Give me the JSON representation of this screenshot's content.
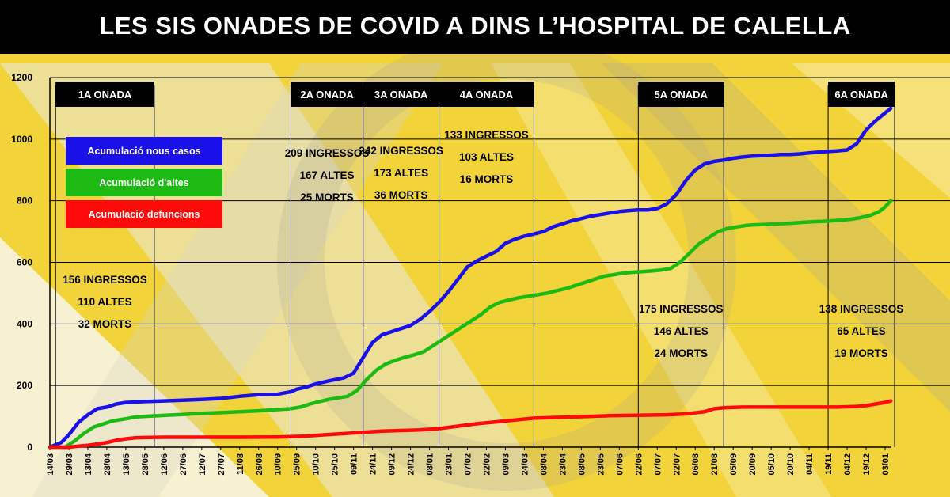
{
  "header": {
    "title": "LES SIS ONADES DE COVID A DINS L’HOSPITAL DE CALELLA"
  },
  "colors": {
    "cases": "#1a10e8",
    "discharges": "#1dba14",
    "deaths": "#ff0a0a",
    "background": "#f2d43a",
    "wave_header": "#000000"
  },
  "chart_data": {
    "type": "line",
    "title": "LES SIS ONADES DE COVID A DINS L’HOSPITAL DE CALELLA",
    "xlabel": "",
    "ylabel": "",
    "ylim": [
      0,
      1200
    ],
    "yticks": [
      0,
      200,
      400,
      600,
      800,
      1000,
      1200
    ],
    "grid": true,
    "legend_position": "top-left",
    "x_tick_labels": [
      "14/03",
      "29/03",
      "13/04",
      "28/04",
      "13/05",
      "28/05",
      "12/06",
      "27/06",
      "12/07",
      "27/07",
      "11/08",
      "26/08",
      "10/09",
      "25/09",
      "10/10",
      "25/10",
      "09/11",
      "24/11",
      "09/12",
      "24/12",
      "08/01",
      "23/01",
      "07/02",
      "22/02",
      "09/03",
      "24/03",
      "08/04",
      "23/04",
      "08/05",
      "23/05",
      "07/06",
      "22/06",
      "07/07",
      "22/07",
      "06/08",
      "21/08",
      "05/09",
      "20/09",
      "05/10",
      "20/10",
      "04/11",
      "19/11",
      "04/12",
      "19/12",
      "03/01"
    ],
    "series": [
      {
        "name": "Acumulació nous casos",
        "color": "#1a10e8",
        "points": [
          [
            0,
            0
          ],
          [
            0.6,
            15
          ],
          [
            1,
            40
          ],
          [
            1.5,
            80
          ],
          [
            2,
            105
          ],
          [
            2.5,
            125
          ],
          [
            3,
            130
          ],
          [
            3.5,
            140
          ],
          [
            4,
            145
          ],
          [
            5,
            148
          ],
          [
            6,
            150
          ],
          [
            7,
            152
          ],
          [
            8,
            155
          ],
          [
            9,
            158
          ],
          [
            10,
            165
          ],
          [
            11,
            170
          ],
          [
            12,
            172
          ],
          [
            12.7,
            180
          ],
          [
            13,
            188
          ],
          [
            13.5,
            195
          ],
          [
            14,
            205
          ],
          [
            14.7,
            215
          ],
          [
            15.5,
            225
          ],
          [
            16,
            240
          ],
          [
            16.5,
            290
          ],
          [
            17,
            340
          ],
          [
            17.5,
            365
          ],
          [
            18,
            375
          ],
          [
            18.5,
            385
          ],
          [
            19,
            395
          ],
          [
            19.5,
            415
          ],
          [
            20,
            440
          ],
          [
            20.5,
            470
          ],
          [
            21,
            505
          ],
          [
            21.5,
            545
          ],
          [
            22,
            585
          ],
          [
            22.5,
            605
          ],
          [
            23,
            620
          ],
          [
            23.5,
            635
          ],
          [
            24,
            662
          ],
          [
            24.5,
            675
          ],
          [
            25,
            685
          ],
          [
            25.5,
            692
          ],
          [
            26,
            700
          ],
          [
            26.5,
            715
          ],
          [
            27,
            725
          ],
          [
            27.5,
            735
          ],
          [
            28,
            742
          ],
          [
            28.5,
            750
          ],
          [
            29,
            755
          ],
          [
            29.5,
            760
          ],
          [
            30,
            765
          ],
          [
            30.5,
            768
          ],
          [
            31,
            770
          ],
          [
            31.5,
            770
          ],
          [
            32,
            775
          ],
          [
            32.5,
            790
          ],
          [
            33,
            820
          ],
          [
            33.5,
            865
          ],
          [
            34,
            900
          ],
          [
            34.5,
            920
          ],
          [
            35,
            928
          ],
          [
            35.5,
            932
          ],
          [
            36,
            938
          ],
          [
            36.5,
            942
          ],
          [
            37,
            945
          ],
          [
            37.5,
            946
          ],
          [
            38,
            948
          ],
          [
            38.5,
            950
          ],
          [
            39,
            950
          ],
          [
            39.5,
            952
          ],
          [
            40,
            955
          ],
          [
            40.5,
            958
          ],
          [
            41,
            960
          ],
          [
            41.5,
            962
          ],
          [
            42,
            965
          ],
          [
            42.5,
            985
          ],
          [
            43,
            1030
          ],
          [
            43.5,
            1060
          ],
          [
            44,
            1085
          ],
          [
            44.3,
            1100
          ]
        ]
      },
      {
        "name": "Acumulació d'altes",
        "color": "#1dba14",
        "points": [
          [
            0,
            0
          ],
          [
            0.8,
            0
          ],
          [
            1.3,
            20
          ],
          [
            1.8,
            45
          ],
          [
            2.3,
            65
          ],
          [
            2.8,
            75
          ],
          [
            3.3,
            85
          ],
          [
            4,
            92
          ],
          [
            4.5,
            98
          ],
          [
            5,
            100
          ],
          [
            6,
            103
          ],
          [
            7,
            106
          ],
          [
            8,
            110
          ],
          [
            9,
            112
          ],
          [
            10,
            115
          ],
          [
            11,
            118
          ],
          [
            12,
            122
          ],
          [
            12.7,
            125
          ],
          [
            13.2,
            130
          ],
          [
            13.7,
            140
          ],
          [
            14.2,
            148
          ],
          [
            14.7,
            155
          ],
          [
            15.2,
            160
          ],
          [
            15.7,
            165
          ],
          [
            16.2,
            185
          ],
          [
            16.7,
            220
          ],
          [
            17.2,
            250
          ],
          [
            17.7,
            270
          ],
          [
            18.2,
            282
          ],
          [
            18.7,
            292
          ],
          [
            19.2,
            300
          ],
          [
            19.7,
            310
          ],
          [
            20.2,
            330
          ],
          [
            20.7,
            350
          ],
          [
            21.2,
            370
          ],
          [
            21.7,
            390
          ],
          [
            22.2,
            410
          ],
          [
            22.7,
            430
          ],
          [
            23.2,
            455
          ],
          [
            23.7,
            470
          ],
          [
            24.2,
            478
          ],
          [
            24.7,
            485
          ],
          [
            25.2,
            490
          ],
          [
            25.7,
            495
          ],
          [
            26.2,
            500
          ],
          [
            26.7,
            508
          ],
          [
            27.2,
            515
          ],
          [
            27.7,
            525
          ],
          [
            28.2,
            535
          ],
          [
            28.7,
            545
          ],
          [
            29.2,
            555
          ],
          [
            29.7,
            560
          ],
          [
            30.2,
            565
          ],
          [
            30.7,
            568
          ],
          [
            31.2,
            570
          ],
          [
            31.7,
            572
          ],
          [
            32.2,
            575
          ],
          [
            32.7,
            580
          ],
          [
            33.2,
            600
          ],
          [
            33.7,
            630
          ],
          [
            34.2,
            660
          ],
          [
            34.7,
            680
          ],
          [
            35.2,
            700
          ],
          [
            35.7,
            710
          ],
          [
            36.2,
            715
          ],
          [
            36.7,
            720
          ],
          [
            37.2,
            722
          ],
          [
            37.7,
            723
          ],
          [
            38.2,
            725
          ],
          [
            38.7,
            726
          ],
          [
            39.2,
            728
          ],
          [
            39.7,
            730
          ],
          [
            40.2,
            732
          ],
          [
            40.7,
            733
          ],
          [
            41.2,
            735
          ],
          [
            41.7,
            737
          ],
          [
            42.2,
            740
          ],
          [
            42.7,
            745
          ],
          [
            43.2,
            752
          ],
          [
            43.7,
            765
          ],
          [
            44,
            780
          ],
          [
            44.3,
            800
          ]
        ]
      },
      {
        "name": "Acumulació defuncions",
        "color": "#ff0a0a",
        "points": [
          [
            0,
            0
          ],
          [
            1,
            0
          ],
          [
            1.5,
            3
          ],
          [
            2,
            6
          ],
          [
            2.5,
            10
          ],
          [
            3,
            15
          ],
          [
            3.5,
            22
          ],
          [
            4,
            27
          ],
          [
            4.5,
            30
          ],
          [
            5,
            31
          ],
          [
            6,
            32
          ],
          [
            8,
            32
          ],
          [
            10,
            32
          ],
          [
            12,
            33
          ],
          [
            12.7,
            34
          ],
          [
            13.5,
            36
          ],
          [
            14.5,
            40
          ],
          [
            15.5,
            44
          ],
          [
            16.5,
            48
          ],
          [
            17.5,
            52
          ],
          [
            18.5,
            54
          ],
          [
            19.5,
            56
          ],
          [
            20.5,
            60
          ],
          [
            21.5,
            68
          ],
          [
            22.5,
            76
          ],
          [
            23.5,
            82
          ],
          [
            24.5,
            88
          ],
          [
            25.5,
            94
          ],
          [
            26.5,
            96
          ],
          [
            27.5,
            98
          ],
          [
            28.5,
            100
          ],
          [
            29.5,
            102
          ],
          [
            30.5,
            103
          ],
          [
            31.5,
            104
          ],
          [
            32.5,
            105
          ],
          [
            33.5,
            108
          ],
          [
            34.5,
            115
          ],
          [
            35,
            125
          ],
          [
            35.5,
            128
          ],
          [
            36.5,
            130
          ],
          [
            37.5,
            130
          ],
          [
            38.5,
            130
          ],
          [
            39.5,
            130
          ],
          [
            40.5,
            130
          ],
          [
            41.5,
            130
          ],
          [
            42.5,
            132
          ],
          [
            43,
            135
          ],
          [
            43.5,
            140
          ],
          [
            44,
            145
          ],
          [
            44.3,
            150
          ]
        ]
      }
    ],
    "waves": [
      {
        "label": "1A ONADA",
        "x_start": 0.3,
        "x_end": 5.5,
        "stats": [
          "156 INGRESSOS",
          "110 ALTES",
          "32 MORTS"
        ]
      },
      {
        "label": "2A ONADA",
        "x_start": 12.7,
        "x_end": 16.5,
        "stats": [
          "209 INGRESSOS",
          "167 ALTES",
          "25 MORTS"
        ]
      },
      {
        "label": "3A ONADA",
        "x_start": 16.5,
        "x_end": 20.5,
        "stats": [
          "242 INGRESSOS",
          "173 ALTES",
          "36 MORTS"
        ]
      },
      {
        "label": "4A ONADA",
        "x_start": 20.5,
        "x_end": 25.5,
        "stats": [
          "133 INGRESSOS",
          "103 ALTES",
          "16 MORTS"
        ]
      },
      {
        "label": "5A ONADA",
        "x_start": 31.0,
        "x_end": 35.5,
        "stats": [
          "175 INGRESSOS",
          "146 ALTES",
          "24 MORTS"
        ]
      },
      {
        "label": "6A ONADA",
        "x_start": 41.0,
        "x_end": 44.5,
        "stats": [
          "138 INGRESSOS",
          "65 ALTES",
          "19 MORTS"
        ]
      }
    ]
  }
}
